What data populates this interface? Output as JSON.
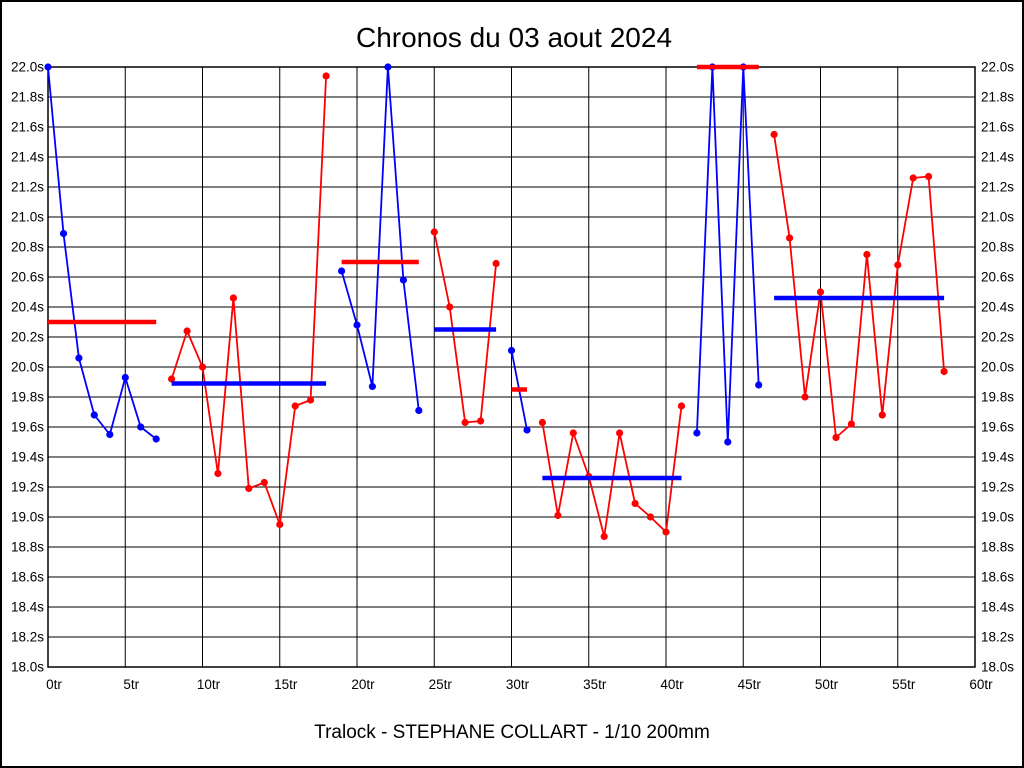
{
  "chart_data": {
    "type": "line",
    "title": "Chronos du 03 aout 2024",
    "caption": "Tralock - STEPHANE COLLART - 1/10 200mm",
    "xlabel": "",
    "ylabel": "",
    "xlim": [
      0,
      60
    ],
    "ylim": [
      18.0,
      22.0
    ],
    "grid": true,
    "legend": false,
    "xtick_values": [
      0,
      5,
      10,
      15,
      20,
      25,
      30,
      35,
      40,
      45,
      50,
      55,
      60
    ],
    "xtick_labels": [
      "0tr",
      "5tr",
      "10tr",
      "15tr",
      "20tr",
      "25tr",
      "30tr",
      "35tr",
      "40tr",
      "45tr",
      "50tr",
      "55tr",
      "60tr"
    ],
    "ytick_values": [
      22.0,
      21.8,
      21.6,
      21.4,
      21.2,
      21.0,
      20.8,
      20.6,
      20.4,
      20.2,
      20.0,
      19.8,
      19.6,
      19.4,
      19.2,
      19.0,
      18.8,
      18.6,
      18.4,
      18.2,
      18.0
    ],
    "ytick_labels": [
      "22.0s",
      "21.8s",
      "21.6s",
      "21.4s",
      "21.2s",
      "21.0s",
      "20.8s",
      "20.6s",
      "20.4s",
      "20.2s",
      "20.0s",
      "19.8s",
      "19.6s",
      "19.4s",
      "19.2s",
      "19.0s",
      "18.8s",
      "18.6s",
      "18.4s",
      "18.2s",
      "18.0s"
    ],
    "colors": {
      "red": "#ff0000",
      "blue": "#0000ff",
      "grid": "#000000",
      "text": "#000000"
    },
    "series_unit_x": "tr",
    "series_unit_y": "s",
    "segments": [
      {
        "color": "blue",
        "avg_color": "red",
        "avg": 20.3,
        "points": [
          [
            0,
            22.0
          ],
          [
            1,
            20.89
          ],
          [
            2,
            20.06
          ],
          [
            3,
            19.68
          ],
          [
            4,
            19.55
          ],
          [
            5,
            19.93
          ],
          [
            6,
            19.6
          ],
          [
            7,
            19.52
          ]
        ]
      },
      {
        "color": "red",
        "avg_color": "blue",
        "avg": 19.89,
        "points": [
          [
            8,
            19.92
          ],
          [
            9,
            20.24
          ],
          [
            10,
            20.0
          ],
          [
            11,
            19.29
          ],
          [
            12,
            20.46
          ],
          [
            13,
            19.19
          ],
          [
            14,
            19.23
          ],
          [
            15,
            18.95
          ],
          [
            16,
            19.74
          ],
          [
            17,
            19.78
          ],
          [
            18,
            21.94
          ]
        ]
      },
      {
        "color": "blue",
        "avg_color": "red",
        "avg": 20.7,
        "points": [
          [
            19,
            20.64
          ],
          [
            20,
            20.28
          ],
          [
            21,
            19.87
          ],
          [
            22,
            22.0
          ],
          [
            23,
            20.58
          ],
          [
            24,
            19.71
          ]
        ]
      },
      {
        "color": "red",
        "avg_color": "blue",
        "avg": 20.25,
        "points": [
          [
            25,
            20.9
          ],
          [
            26,
            20.4
          ],
          [
            27,
            19.63
          ],
          [
            28,
            19.64
          ],
          [
            29,
            20.69
          ]
        ]
      },
      {
        "color": "blue",
        "avg_color": "red",
        "avg": 19.85,
        "points": [
          [
            30,
            20.11
          ],
          [
            31,
            19.58
          ]
        ]
      },
      {
        "color": "red",
        "avg_color": "blue",
        "avg": 19.26,
        "points": [
          [
            32,
            19.63
          ],
          [
            33,
            19.01
          ],
          [
            34,
            19.56
          ],
          [
            35,
            19.27
          ],
          [
            36,
            18.87
          ],
          [
            37,
            19.56
          ],
          [
            38,
            19.09
          ],
          [
            39,
            19.0
          ],
          [
            40,
            18.9
          ],
          [
            41,
            19.74
          ]
        ]
      },
      {
        "color": "blue",
        "avg_color": "red",
        "avg": 22.0,
        "points": [
          [
            42,
            19.56
          ],
          [
            43,
            22.0
          ],
          [
            44,
            19.5
          ],
          [
            45,
            22.0
          ],
          [
            46,
            19.88
          ]
        ]
      },
      {
        "color": "red",
        "avg_color": "blue",
        "avg": 20.46,
        "points": [
          [
            47,
            21.55
          ],
          [
            48,
            20.86
          ],
          [
            49,
            19.8
          ],
          [
            50,
            20.5
          ],
          [
            51,
            19.53
          ],
          [
            52,
            19.62
          ],
          [
            53,
            20.75
          ],
          [
            54,
            19.68
          ],
          [
            55,
            20.68
          ],
          [
            56,
            21.26
          ],
          [
            57,
            21.27
          ],
          [
            58,
            19.97
          ]
        ]
      }
    ]
  }
}
